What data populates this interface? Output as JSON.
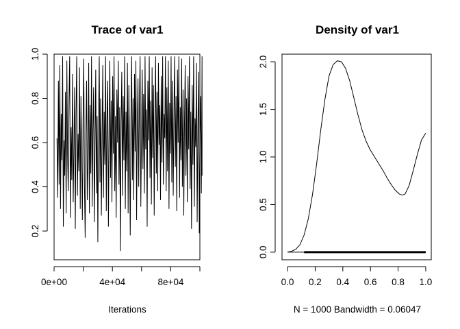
{
  "chart_data": [
    {
      "type": "line",
      "title": "Trace of var1",
      "xlabel": "Iterations",
      "ylabel": "",
      "xlim": [
        0,
        100000
      ],
      "ylim": [
        0.07,
        1.0
      ],
      "x_ticks": [
        0,
        40000,
        80000
      ],
      "x_tick_labels": [
        "0e+00",
        "4e+04",
        "8e+04"
      ],
      "y_ticks": [
        0.2,
        0.4,
        0.6,
        0.8,
        1.0
      ],
      "y_tick_labels": [
        "0.2",
        "0.4",
        "0.6",
        "0.8",
        "1.0"
      ],
      "series": [
        {
          "x_start": 2000,
          "x_end": 102000,
          "values": [
            0.62,
            0.35,
            0.88,
            0.41,
            0.95,
            0.3,
            0.73,
            0.52,
            0.99,
            0.22,
            0.61,
            0.45,
            0.83,
            0.28,
            0.97,
            0.55,
            0.38,
            0.79,
            0.99,
            0.26,
            0.67,
            0.43,
            0.91,
            0.33,
            0.58,
            0.85,
            0.21,
            0.72,
            0.99,
            0.36,
            0.64,
            0.47,
            0.94,
            0.3,
            0.81,
            0.56,
            0.25,
            0.7,
            0.98,
            0.4,
            0.17,
            0.63,
            0.88,
            0.34,
            0.51,
            0.96,
            0.28,
            0.77,
            0.46,
            0.99,
            0.31,
            0.66,
            0.85,
            0.24,
            0.59,
            0.93,
            0.37,
            0.72,
            0.15,
            0.68,
            0.99,
            0.42,
            0.8,
            0.27,
            0.62,
            0.95,
            0.35,
            0.74,
            0.5,
            0.99,
            0.29,
            0.7,
            0.88,
            0.22,
            0.65,
            0.97,
            0.44,
            0.79,
            0.33,
            0.9,
            0.55,
            0.99,
            0.38,
            0.72,
            0.26,
            0.84,
            0.6,
            0.97,
            0.41,
            0.76,
            0.11,
            0.69,
            0.92,
            0.36,
            0.81,
            0.52,
            0.99,
            0.3,
            0.74,
            0.47,
            0.96,
            0.28,
            0.86,
            0.58,
            0.18,
            0.71,
            0.99,
            0.43,
            0.8,
            0.34,
            0.91,
            0.56,
            0.97,
            0.25,
            0.67,
            0.89,
            0.4,
            0.78,
            0.99,
            0.31,
            0.63,
            0.93,
            0.48,
            0.82,
            0.37,
            0.99,
            0.57,
            0.75,
            0.22,
            0.88,
            0.61,
            0.99,
            0.44,
            0.79,
            0.32,
            0.94,
            0.53,
            0.86,
            0.27,
            0.7,
            0.99,
            0.46,
            0.83,
            0.38,
            0.96,
            0.59,
            0.77,
            0.34,
            0.9,
            0.51,
            0.99,
            0.41,
            0.73,
            0.62,
            0.99,
            0.38,
            0.85,
            0.47,
            0.97,
            0.3,
            0.78,
            0.55,
            0.99,
            0.42,
            0.88,
            0.36,
            0.72,
            0.99,
            0.49,
            0.81,
            0.29,
            0.93,
            0.6,
            0.99,
            0.35,
            0.76,
            0.52,
            0.98,
            0.4,
            0.84,
            0.27,
            0.69,
            0.95,
            0.45,
            0.8,
            0.33,
            0.9,
            0.57,
            0.99,
            0.39,
            0.74,
            0.21,
            0.86,
            0.5,
            0.99,
            0.31,
            0.71,
            0.58,
            0.96,
            0.24,
            0.66,
            0.92,
            0.19,
            0.63,
            0.81,
            0.37,
            0.99,
            0.45
          ]
        }
      ],
      "grid": false
    },
    {
      "type": "line",
      "title": "Density of var1",
      "xlabel": "N = 1000   Bandwidth = 0.06047",
      "ylabel": "",
      "xlim": [
        -0.04,
        1.04
      ],
      "ylim": [
        -0.08,
        2.08
      ],
      "x_ticks": [
        0.0,
        0.2,
        0.4,
        0.6,
        0.8,
        1.0
      ],
      "x_tick_labels": [
        "0.0",
        "0.2",
        "0.4",
        "0.6",
        "0.8",
        "1.0"
      ],
      "y_ticks": [
        0.0,
        0.5,
        1.0,
        1.5,
        2.0
      ],
      "y_tick_labels": [
        "0.0",
        "0.5",
        "1.0",
        "1.5",
        "2.0"
      ],
      "series": [
        {
          "x": [
            0.0,
            0.03,
            0.06,
            0.09,
            0.12,
            0.15,
            0.18,
            0.21,
            0.24,
            0.27,
            0.3,
            0.33,
            0.36,
            0.39,
            0.42,
            0.45,
            0.48,
            0.51,
            0.54,
            0.57,
            0.6,
            0.63,
            0.66,
            0.69,
            0.72,
            0.75,
            0.78,
            0.81,
            0.83,
            0.85,
            0.88,
            0.91,
            0.94,
            0.97,
            1.0
          ],
          "y": [
            0.0,
            0.01,
            0.03,
            0.08,
            0.18,
            0.35,
            0.6,
            0.92,
            1.28,
            1.6,
            1.85,
            1.97,
            2.01,
            2.0,
            1.93,
            1.8,
            1.62,
            1.44,
            1.28,
            1.16,
            1.07,
            1.0,
            0.93,
            0.86,
            0.78,
            0.71,
            0.65,
            0.61,
            0.6,
            0.61,
            0.7,
            0.86,
            1.03,
            1.18,
            1.25
          ]
        }
      ],
      "rug": true,
      "grid": false
    }
  ]
}
